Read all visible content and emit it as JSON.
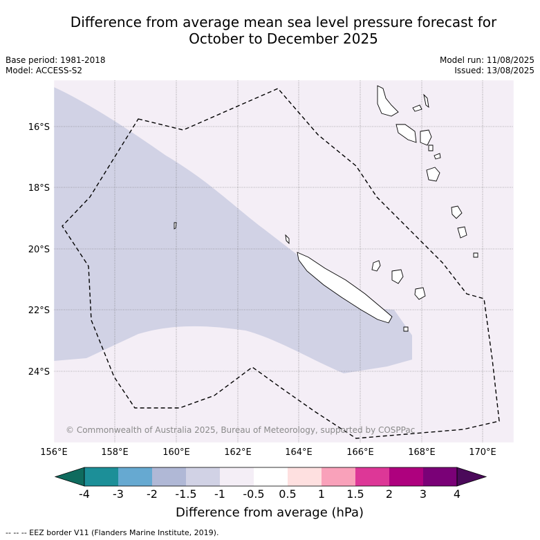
{
  "title_line1": "Difference from average mean sea level pressure forecast for",
  "title_line2": "October to December 2025",
  "meta": {
    "base_period": "Base period: 1981-2018",
    "model": "Model: ACCESS-S2",
    "model_run": "Model run: 11/08/2025",
    "issued": "Issued: 13/08/2025"
  },
  "map": {
    "lat_labels": [
      "16°S",
      "18°S",
      "20°S",
      "22°S",
      "24°S"
    ],
    "lon_labels": [
      "156°E",
      "158°E",
      "160°E",
      "162°E",
      "164°E",
      "166°E",
      "168°E",
      "170°E"
    ],
    "copyright": "© Commonwealth of Australia 2025, Bureau of Meteorology, supported by COSPPac",
    "ocean_color": "#f4eef6",
    "anomaly_color": "#d1d2e5",
    "anomaly_class": "-1.5 to -1"
  },
  "colorbar": {
    "title": "Difference from average (hPa)",
    "ticks": [
      "-4",
      "-3",
      "-2",
      "-1.5",
      "-1",
      "-0.5",
      "0.5",
      "1",
      "1.5",
      "2",
      "3",
      "4"
    ],
    "colors": [
      "#0f6b5e",
      "#1c8f98",
      "#66a9d1",
      "#b0b8d6",
      "#d1d2e5",
      "#f4eef6",
      "#ffffff",
      "#fee0e0",
      "#f9a1ba",
      "#dd3797",
      "#ae017e",
      "#7a0177",
      "#4b0a5a"
    ]
  },
  "footer": "--  --  -- EEZ border V11 (Flanders Marine Institute, 2019)."
}
